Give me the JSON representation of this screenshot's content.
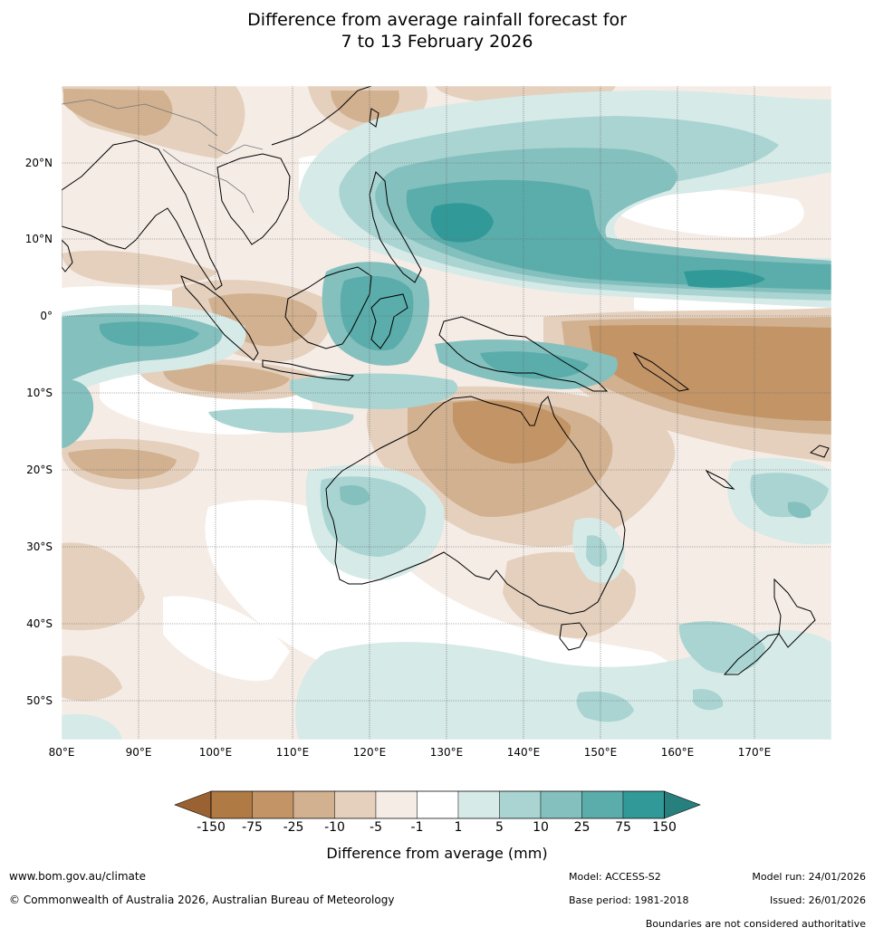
{
  "title_line1": "Difference from average rainfall forecast for",
  "title_line2": "7 to 13 February 2026",
  "lat_labels": [
    "20°N",
    "10°N",
    "0°",
    "10°S",
    "20°S",
    "30°S",
    "40°S",
    "50°S"
  ],
  "lon_labels": [
    "80°E",
    "90°E",
    "100°E",
    "110°E",
    "120°E",
    "130°E",
    "140°E",
    "150°E",
    "160°E",
    "170°E"
  ],
  "colorbar": {
    "colors": [
      "#9a6232",
      "#b07a44",
      "#c29466",
      "#d1b18f",
      "#e4d0bd",
      "#f5ece6",
      "#ffffff",
      "#d6eae8",
      "#a9d4d2",
      "#84c0be",
      "#5aadab",
      "#319a98",
      "#27807e"
    ],
    "labels": [
      "-150",
      "-75",
      "-25",
      "-10",
      "-5",
      "-1",
      "1",
      "5",
      "10",
      "25",
      "75",
      "150"
    ],
    "title": "Difference from average (mm)"
  },
  "footer": {
    "website": "www.bom.gov.au/climate",
    "copyright": "© Commonwealth of Australia 2026, Australian Bureau of Meteorology",
    "model": "Model: ACCESS-S2",
    "base_period": "Base period: 1981-2018",
    "model_run": "Model run: 24/01/2026",
    "issued": "Issued: 26/01/2026",
    "disclaimer": "Boundaries are not considered authoritative"
  }
}
